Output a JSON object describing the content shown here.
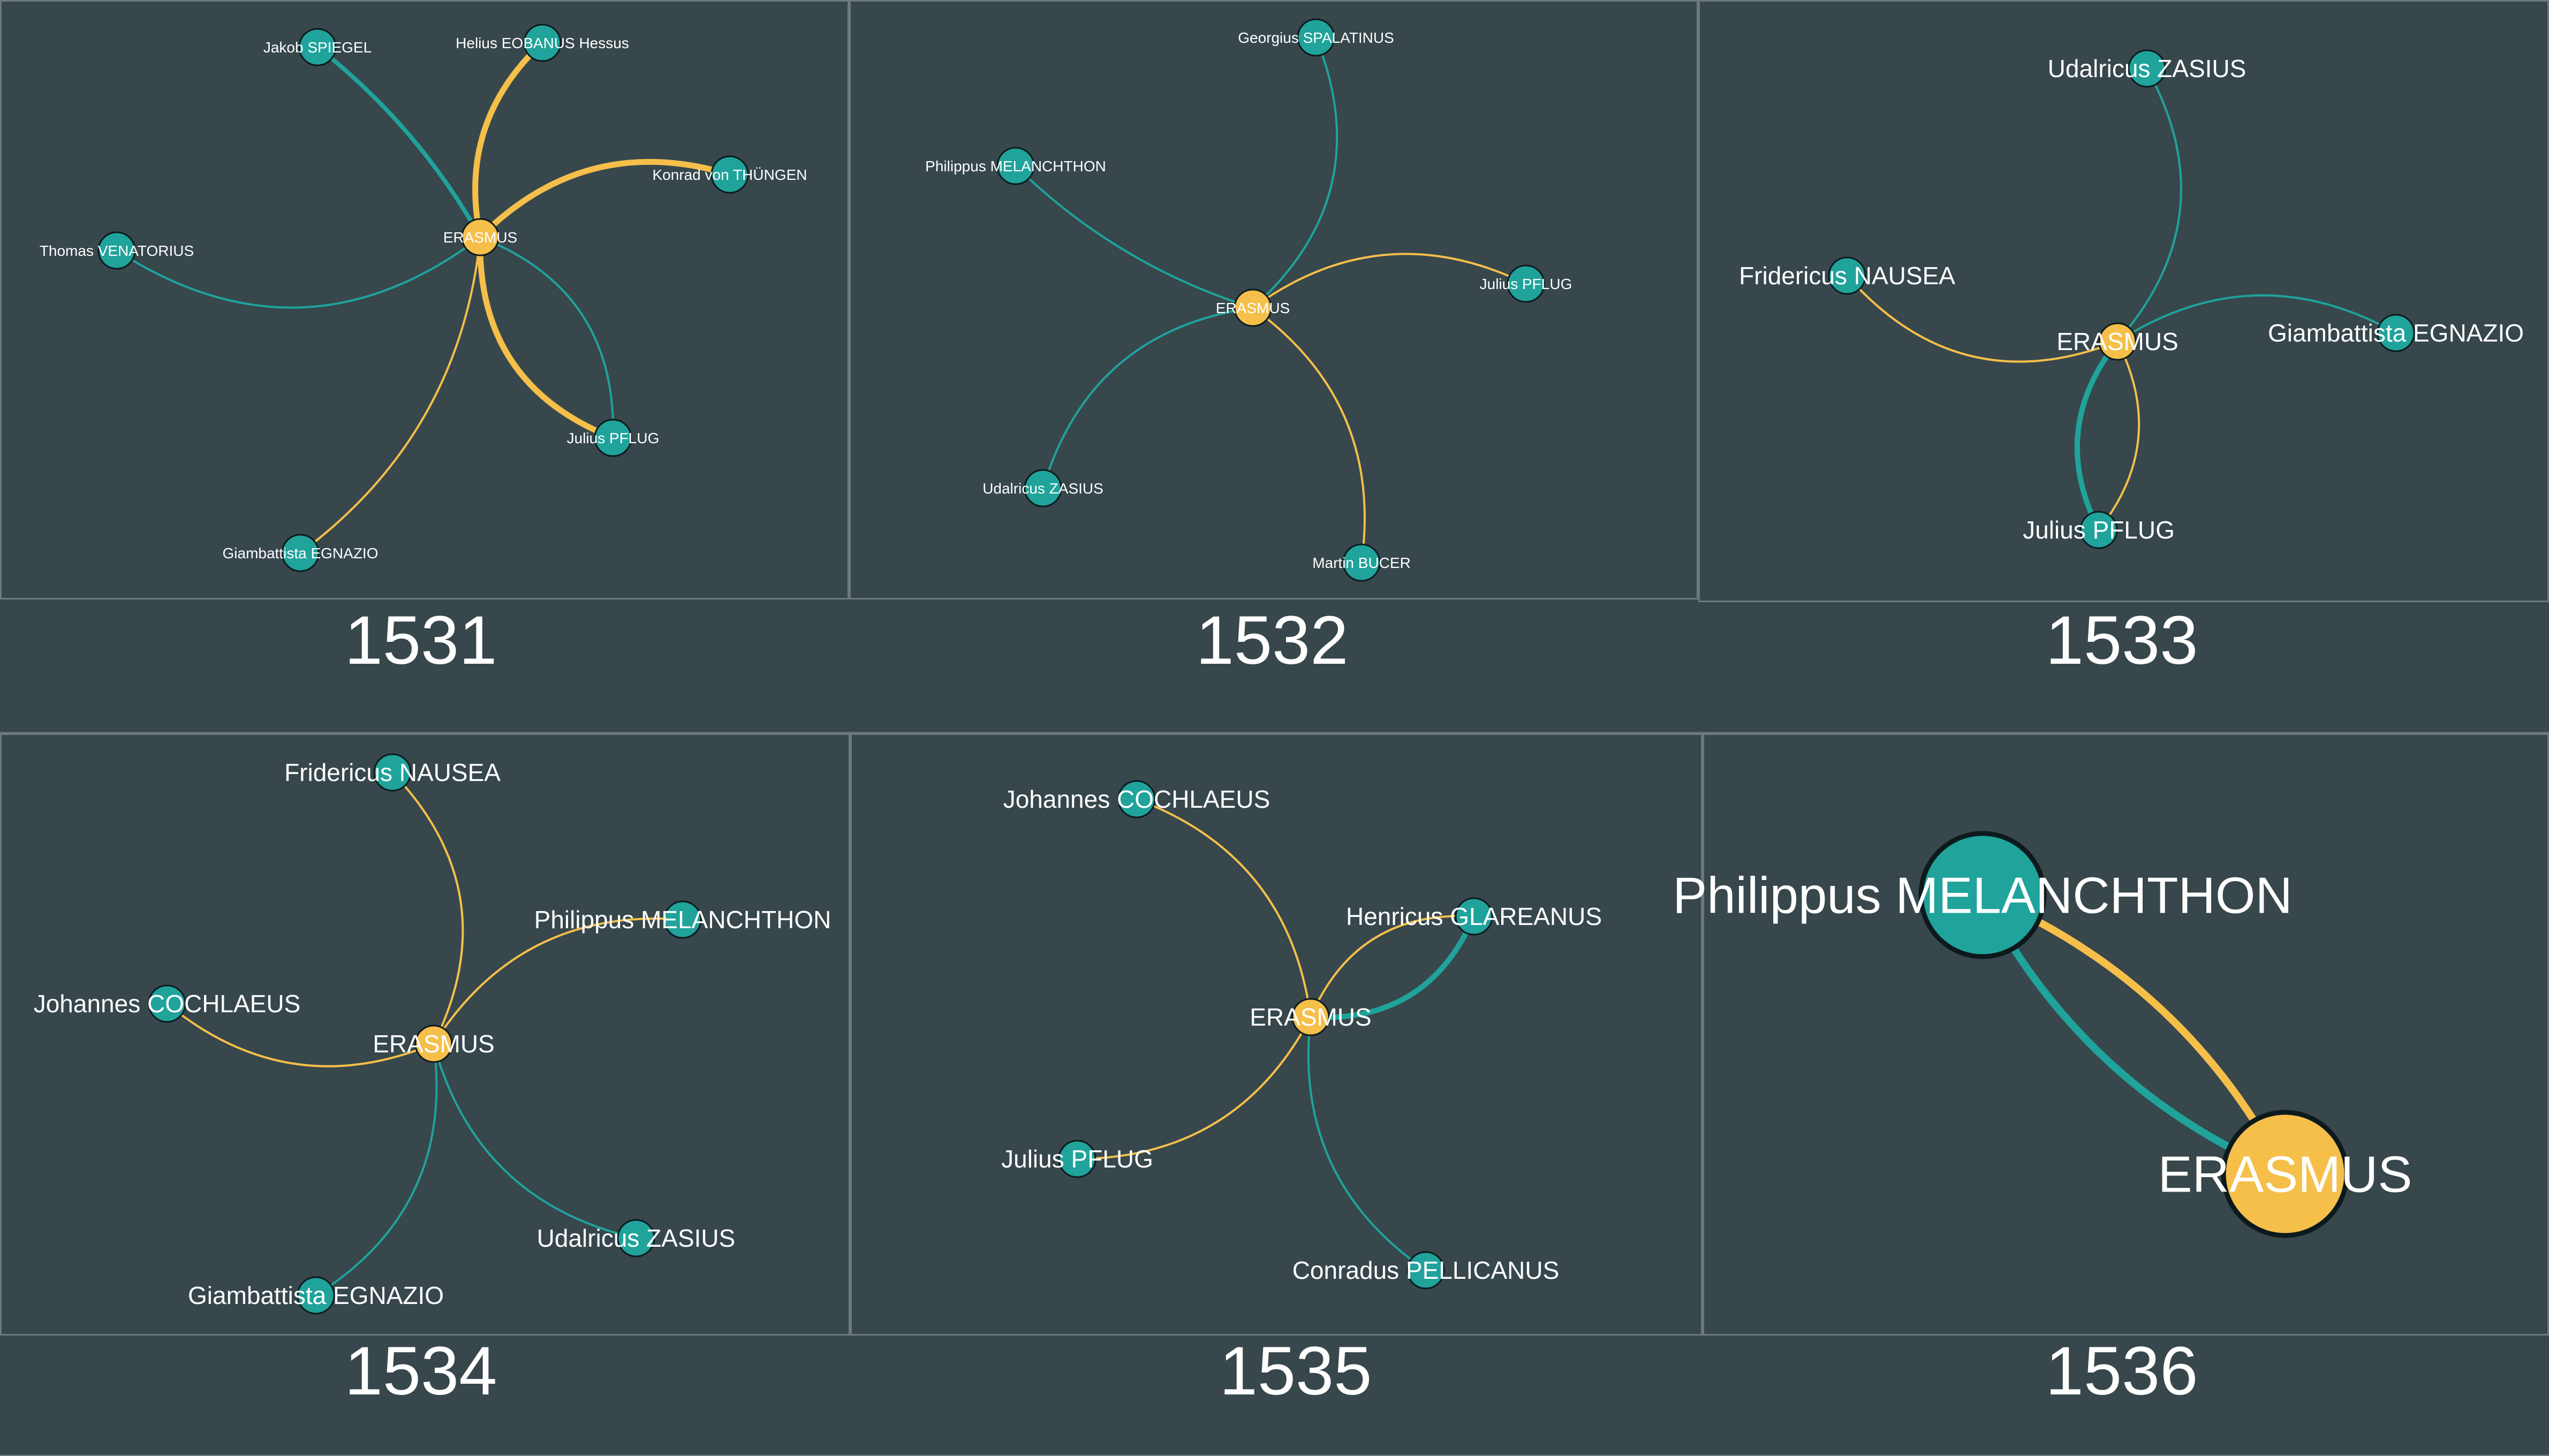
{
  "colors": {
    "background": "#37474c",
    "panel_border": "#6c7a7f",
    "teal": "#1fa39b",
    "gold": "#f5bf4a",
    "label": "#ffffff",
    "node_outline": "#0d1a1d"
  },
  "panels": [
    {
      "year": "1531",
      "center": "ERASMUS",
      "nodes": [
        "Jakob SPIEGEL",
        "Helius EOBANUS Hessus",
        "Konrad von THÜNGEN",
        "Thomas VENATORIUS",
        "Julius PFLUG",
        "Giambattista EGNAZIO"
      ],
      "edges": [
        {
          "from": "ERASMUS",
          "to": "Jakob SPIEGEL",
          "color": "teal"
        },
        {
          "from": "ERASMUS",
          "to": "Helius EOBANUS Hessus",
          "color": "gold"
        },
        {
          "from": "ERASMUS",
          "to": "Konrad von THÜNGEN",
          "color": "gold"
        },
        {
          "from": "ERASMUS",
          "to": "Thomas VENATORIUS",
          "color": "teal"
        },
        {
          "from": "ERASMUS",
          "to": "Julius PFLUG",
          "color": "gold"
        },
        {
          "from": "ERASMUS",
          "to": "Julius PFLUG",
          "color": "teal"
        },
        {
          "from": "ERASMUS",
          "to": "Giambattista EGNAZIO",
          "color": "gold"
        }
      ]
    },
    {
      "year": "1532",
      "center": "ERASMUS",
      "nodes": [
        "Georgius SPALATINUS",
        "Philippus MELANCHTHON",
        "Julius PFLUG",
        "Udalricus ZASIUS",
        "Martin BUCER"
      ],
      "edges": [
        {
          "from": "ERASMUS",
          "to": "Georgius SPALATINUS",
          "color": "teal"
        },
        {
          "from": "ERASMUS",
          "to": "Philippus MELANCHTHON",
          "color": "teal"
        },
        {
          "from": "ERASMUS",
          "to": "Julius PFLUG",
          "color": "gold"
        },
        {
          "from": "ERASMUS",
          "to": "Udalricus ZASIUS",
          "color": "teal"
        },
        {
          "from": "ERASMUS",
          "to": "Martin BUCER",
          "color": "gold"
        }
      ]
    },
    {
      "year": "1533",
      "center": "ERASMUS",
      "nodes": [
        "Udalricus ZASIUS",
        "Fridericus NAUSEA",
        "Giambattista EGNAZIO",
        "Julius PFLUG"
      ],
      "edges": [
        {
          "from": "ERASMUS",
          "to": "Udalricus ZASIUS",
          "color": "teal"
        },
        {
          "from": "ERASMUS",
          "to": "Fridericus NAUSEA",
          "color": "gold"
        },
        {
          "from": "ERASMUS",
          "to": "Giambattista EGNAZIO",
          "color": "teal"
        },
        {
          "from": "ERASMUS",
          "to": "Julius PFLUG",
          "color": "teal"
        },
        {
          "from": "ERASMUS",
          "to": "Julius PFLUG",
          "color": "gold"
        }
      ]
    },
    {
      "year": "1534",
      "center": "ERASMUS",
      "nodes": [
        "Fridericus NAUSEA",
        "Philippus MELANCHTHON",
        "Johannes COCHLAEUS",
        "Udalricus ZASIUS",
        "Giambattista EGNAZIO"
      ],
      "edges": [
        {
          "from": "ERASMUS",
          "to": "Fridericus NAUSEA",
          "color": "gold"
        },
        {
          "from": "ERASMUS",
          "to": "Philippus MELANCHTHON",
          "color": "gold"
        },
        {
          "from": "ERASMUS",
          "to": "Johannes COCHLAEUS",
          "color": "gold"
        },
        {
          "from": "ERASMUS",
          "to": "Udalricus ZASIUS",
          "color": "teal"
        },
        {
          "from": "ERASMUS",
          "to": "Giambattista EGNAZIO",
          "color": "teal"
        }
      ]
    },
    {
      "year": "1535",
      "center": "ERASMUS",
      "nodes": [
        "Johannes COCHLAEUS",
        "Henricus GLAREANUS",
        "Julius PFLUG",
        "Conradus PELLICANUS"
      ],
      "edges": [
        {
          "from": "ERASMUS",
          "to": "Johannes COCHLAEUS",
          "color": "gold"
        },
        {
          "from": "ERASMUS",
          "to": "Henricus GLAREANUS",
          "color": "gold"
        },
        {
          "from": "ERASMUS",
          "to": "Henricus GLAREANUS",
          "color": "teal"
        },
        {
          "from": "ERASMUS",
          "to": "Julius PFLUG",
          "color": "gold"
        },
        {
          "from": "ERASMUS",
          "to": "Conradus PELLICANUS",
          "color": "teal"
        }
      ]
    },
    {
      "year": "1536",
      "center": "ERASMUS",
      "nodes": [
        "Philippus MELANCHTHON"
      ],
      "edges": [
        {
          "from": "ERASMUS",
          "to": "Philippus MELANCHTHON",
          "color": "gold"
        },
        {
          "from": "ERASMUS",
          "to": "Philippus MELANCHTHON",
          "color": "teal"
        }
      ]
    }
  ]
}
